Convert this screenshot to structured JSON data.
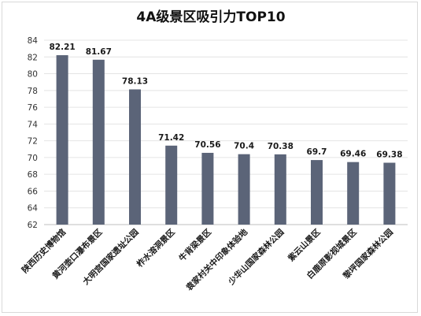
{
  "chart_data": {
    "type": "bar",
    "title": "4A级景区吸引力TOP10",
    "categories": [
      "陕西历史博物馆",
      "黄河壶口瀑布景区",
      "大明宫国家遗址公园",
      "柞水溶洞景区",
      "牛背梁景区",
      "袁家村关中印象体验地",
      "少华山国家森林公园",
      "紫云山景区",
      "白鹿原影视城景区",
      "黎坪国家森林公园"
    ],
    "values": [
      82.21,
      81.67,
      78.13,
      71.42,
      70.56,
      70.4,
      70.38,
      69.7,
      69.46,
      69.38
    ],
    "value_labels": [
      "82.21",
      "81.67",
      "78.13",
      "71.42",
      "70.56",
      "70.4",
      "70.38",
      "69.7",
      "69.46",
      "69.38"
    ],
    "ylim": [
      62,
      84
    ],
    "yticks": [
      62,
      64,
      66,
      68,
      70,
      72,
      74,
      76,
      78,
      80,
      82,
      84
    ],
    "xlabel": "",
    "ylabel": "",
    "grid": true,
    "legend": "none",
    "bar_color": "#5b6478"
  }
}
